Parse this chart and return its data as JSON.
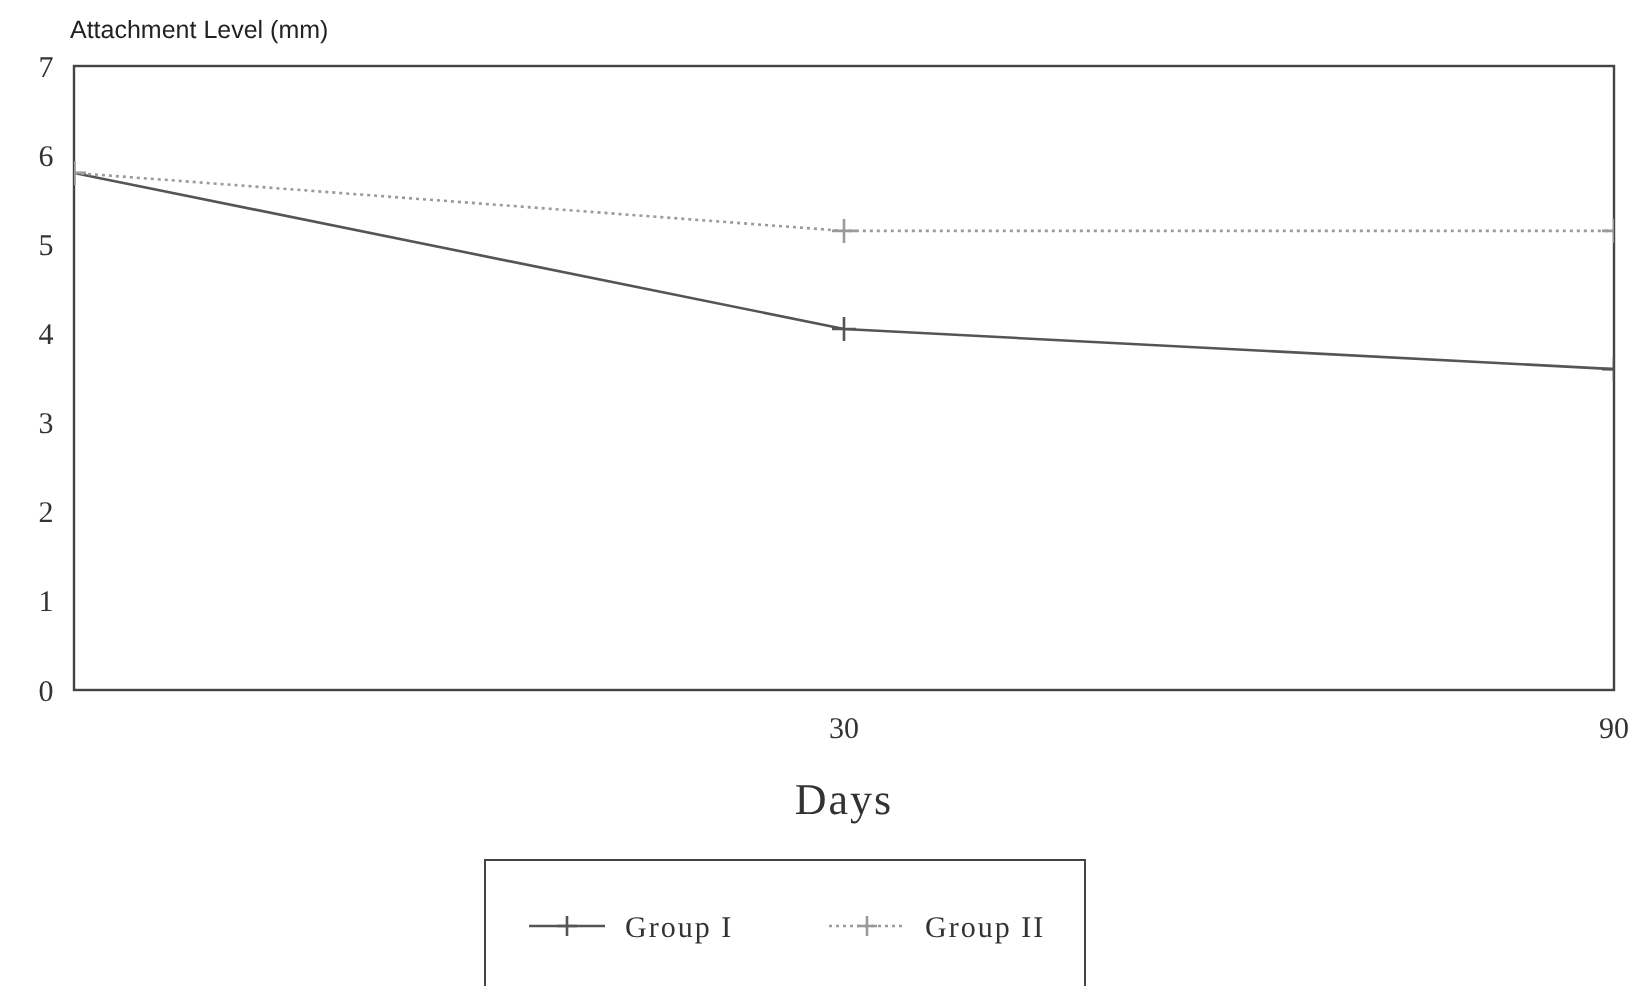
{
  "chart_data": {
    "type": "line",
    "ylabel": "Attachment Level (mm)",
    "xlabel": "Days",
    "categories": [
      null,
      "30",
      "90"
    ],
    "ylim": [
      0,
      7
    ],
    "yticks": [
      0,
      1,
      2,
      3,
      4,
      5,
      6,
      7
    ],
    "grid": false,
    "legend": "bottom",
    "marker": "cross",
    "series": [
      {
        "name": "Group I",
        "color": "#555555",
        "values": [
          5.8,
          4.05,
          3.6
        ],
        "line_style": "solid"
      },
      {
        "name": "Group II",
        "color": "#9a9a9a",
        "values": [
          5.8,
          5.15,
          5.15
        ],
        "line_style": "dotted"
      }
    ]
  }
}
